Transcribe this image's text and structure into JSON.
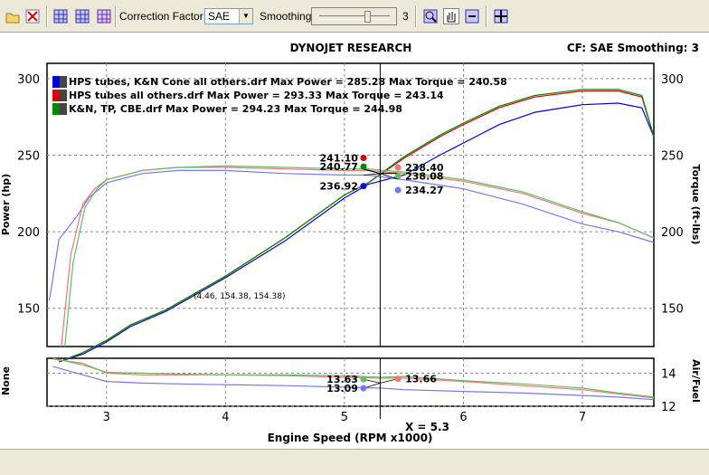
{
  "toolbar": {
    "correction_factor_label": "Correction Factor:",
    "correction_factor_value": "SAE",
    "smoothing_label": "Smoothing:",
    "smoothing_value": "3",
    "icons": [
      "open-folder-icon",
      "close-run-icon",
      "grid-icon",
      "grid-view-icon",
      "grid-alt-icon",
      "zoom-icon",
      "hand-pan-icon",
      "zoom-out-icon",
      "crosshair-icon"
    ]
  },
  "header": {
    "title": "DYNOJET RESEARCH",
    "info": "CF: SAE  Smoothing: 3"
  },
  "colors": {
    "run1": "#0000dd",
    "run2": "#dd0000",
    "run3": "#008800",
    "power_run1": "#7777ee",
    "power_run2": "#ee7777",
    "power_run3": "#66bb66"
  },
  "chart_data": [
    {
      "type": "line",
      "title": "DYNOJET RESEARCH",
      "xlabel": "Engine Speed (RPM x1000)",
      "ylabel_left": "Power (hp)",
      "ylabel_right": "Torque (ft-lbs)",
      "xlim": [
        2.5,
        7.6
      ],
      "ylim": [
        125,
        310
      ],
      "x_ticks": [
        "3",
        "4",
        "5",
        "6",
        "7"
      ],
      "y_ticks": [
        "150",
        "200",
        "250",
        "300"
      ],
      "legend": [
        "HPS tubes, K&N Cone all others.drf Max Power = 285.28 Max Torque = 240.58",
        "HPS tubes all others.drf Max Power = 293.33 Max Torque = 243.14",
        "K&N, TP, CBE.drf Max Power = 294.23 Max Torque = 244.98"
      ],
      "cursor_x": 5.3,
      "cursor_label": "X = 5.3",
      "annotation": "(4.46, 154.38, 154.38)",
      "series": [
        {
          "name": "HPS tubes, K&N Cone all others.drf",
          "kind": "power",
          "x": [
            2.6,
            2.8,
            3.0,
            3.2,
            3.5,
            4.0,
            4.5,
            5.0,
            5.2,
            5.5,
            5.8,
            6.0,
            6.3,
            6.6,
            7.0,
            7.3,
            7.5,
            7.6
          ],
          "y": [
            115,
            120,
            128,
            138,
            148,
            170,
            194,
            222,
            231,
            237,
            250,
            258,
            270,
            278,
            283,
            284,
            281,
            262
          ]
        },
        {
          "name": "HPS tubes all others.drf",
          "kind": "power",
          "x": [
            2.6,
            2.8,
            3.0,
            3.2,
            3.5,
            4.0,
            4.5,
            5.0,
            5.2,
            5.5,
            5.8,
            6.0,
            6.3,
            6.6,
            7.0,
            7.3,
            7.5,
            7.6
          ],
          "y": [
            115,
            121,
            129,
            139,
            149,
            171,
            196,
            224,
            232,
            248,
            262,
            270,
            281,
            288,
            292,
            292,
            288,
            262
          ]
        },
        {
          "name": "K&N, TP, CBE.drf",
          "kind": "power",
          "x": [
            2.6,
            2.8,
            3.0,
            3.2,
            3.5,
            4.0,
            4.5,
            5.0,
            5.2,
            5.5,
            5.8,
            6.0,
            6.3,
            6.6,
            7.0,
            7.3,
            7.5,
            7.6
          ],
          "y": [
            115,
            121,
            129,
            139,
            149,
            171,
            196,
            224,
            232,
            249,
            263,
            271,
            282,
            289,
            293,
            293,
            289,
            262
          ]
        },
        {
          "name": "HPS tubes, K&N Cone all others.drf",
          "kind": "torque",
          "x": [
            2.52,
            2.6,
            2.75,
            2.85,
            3.0,
            3.3,
            3.6,
            4.0,
            4.5,
            5.0,
            5.2,
            5.5,
            6.0,
            6.5,
            7.0,
            7.3,
            7.6
          ],
          "y": [
            155,
            195,
            210,
            222,
            232,
            238,
            240,
            240,
            238,
            237,
            237,
            234,
            228,
            218,
            205,
            200,
            193
          ]
        },
        {
          "name": "HPS tubes all others.drf",
          "kind": "torque",
          "x": [
            2.62,
            2.7,
            2.8,
            2.9,
            3.0,
            3.3,
            3.6,
            4.0,
            4.5,
            5.0,
            5.2,
            5.5,
            6.0,
            6.5,
            7.0,
            7.3,
            7.6
          ],
          "y": [
            125,
            185,
            218,
            228,
            234,
            240,
            242,
            242,
            241,
            240,
            240,
            238,
            233,
            225,
            212,
            206,
            196
          ]
        },
        {
          "name": "K&N, TP, CBE.drf",
          "kind": "torque",
          "x": [
            2.65,
            2.72,
            2.82,
            2.92,
            3.0,
            3.3,
            3.6,
            4.0,
            4.5,
            5.0,
            5.2,
            5.5,
            6.0,
            6.5,
            7.0,
            7.3,
            7.6
          ],
          "y": [
            125,
            180,
            216,
            228,
            234,
            240,
            242,
            243,
            242,
            241,
            241,
            239,
            234,
            226,
            213,
            206,
            196
          ]
        }
      ],
      "markers": [
        {
          "label": "241.10",
          "x": 5.16,
          "y": 241.1,
          "color": "#dd0000"
        },
        {
          "label": "240.77",
          "x": 5.16,
          "y": 240.77,
          "color": "#008800"
        },
        {
          "label": "236.92",
          "x": 5.16,
          "y": 236.92,
          "color": "#0000dd"
        },
        {
          "label": "238.40",
          "x": 5.45,
          "y": 238.4,
          "color": "#ee7777"
        },
        {
          "label": "238.08",
          "x": 5.45,
          "y": 238.08,
          "color": "#66bb66"
        },
        {
          "label": "234.27",
          "x": 5.45,
          "y": 234.27,
          "color": "#7777ee"
        }
      ]
    },
    {
      "type": "line",
      "ylabel_left": "None",
      "ylabel_right": "Air/Fuel",
      "xlim": [
        2.5,
        7.6
      ],
      "ylim": [
        12,
        14.9
      ],
      "y_ticks": [
        "12",
        "14"
      ],
      "series": [
        {
          "name": "HPS tubes, K&N Cone all others.drf",
          "x": [
            2.55,
            2.8,
            3.0,
            3.3,
            3.6,
            4.0,
            4.5,
            5.0,
            5.3,
            5.5,
            6.0,
            6.5,
            7.0,
            7.3,
            7.6
          ],
          "y": [
            14.4,
            13.9,
            13.5,
            13.4,
            13.35,
            13.3,
            13.25,
            13.15,
            13.1,
            13.0,
            12.9,
            12.8,
            12.65,
            12.55,
            12.4
          ]
        },
        {
          "name": "HPS tubes all others.drf",
          "x": [
            2.55,
            2.8,
            3.0,
            3.3,
            3.6,
            4.0,
            4.5,
            5.0,
            5.3,
            5.5,
            6.0,
            6.5,
            7.0,
            7.3,
            7.6
          ],
          "y": [
            14.85,
            14.6,
            14.0,
            13.9,
            13.9,
            13.9,
            13.85,
            13.75,
            13.7,
            13.7,
            13.5,
            13.25,
            13.0,
            12.75,
            12.5
          ]
        },
        {
          "name": "K&N, TP, CBE.drf",
          "x": [
            2.55,
            2.8,
            3.0,
            3.3,
            3.6,
            4.0,
            4.5,
            5.0,
            5.3,
            5.5,
            6.0,
            6.5,
            7.0,
            7.3,
            7.6
          ],
          "y": [
            14.9,
            14.5,
            14.05,
            14.0,
            13.95,
            13.9,
            13.9,
            13.85,
            13.75,
            13.8,
            13.55,
            13.35,
            13.1,
            12.8,
            12.55
          ]
        }
      ],
      "markers": [
        {
          "label": "13.63",
          "x": 5.16,
          "y": 13.63,
          "color": "#66bb66"
        },
        {
          "label": "13.66",
          "x": 5.45,
          "y": 13.66,
          "color": "#ee7777"
        },
        {
          "label": "13.09",
          "x": 5.16,
          "y": 13.09,
          "color": "#7777ee"
        }
      ]
    }
  ]
}
